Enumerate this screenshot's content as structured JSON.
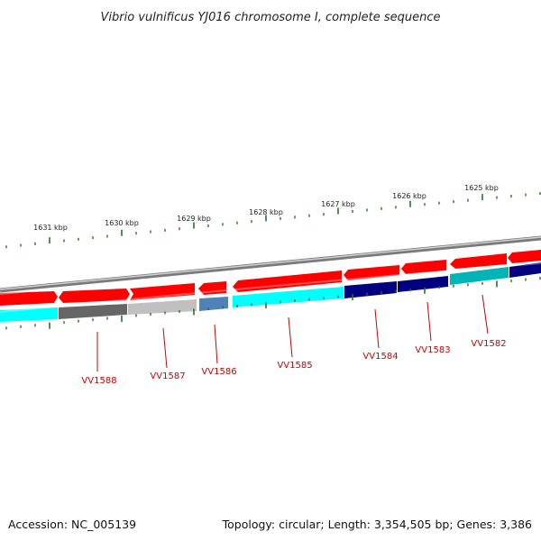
{
  "title": "Vibrio vulnificus YJ016 chromosome I, complete sequence",
  "footer": {
    "accession": "Accession: NC_005139",
    "summary": "Topology: circular; Length: 3,354,505 bp; Genes: 3,386"
  },
  "ruler": {
    "labels": [
      "1631 kbp",
      "1630 kbp",
      "1629 kbp",
      "1628 kbp",
      "1627 kbp",
      "1626 kbp",
      "1625 kbp"
    ],
    "tick_color": "#227722"
  },
  "colors": {
    "backbone": "#888888",
    "forward_gene": "#ff0000",
    "label": "#cc0000"
  },
  "genes": [
    {
      "name": "VV1588",
      "color": "#666666"
    },
    {
      "name": "VV1587",
      "color": "#c0c0c0"
    },
    {
      "name": "VV1586",
      "color": "#4f83b8"
    },
    {
      "name": "VV1585",
      "color": "#00ffff"
    },
    {
      "name": "VV1584",
      "color": "#000080"
    },
    {
      "name": "VV1583",
      "color": "#000080"
    },
    {
      "name": "VV1582",
      "color": "#00b5b5"
    }
  ]
}
